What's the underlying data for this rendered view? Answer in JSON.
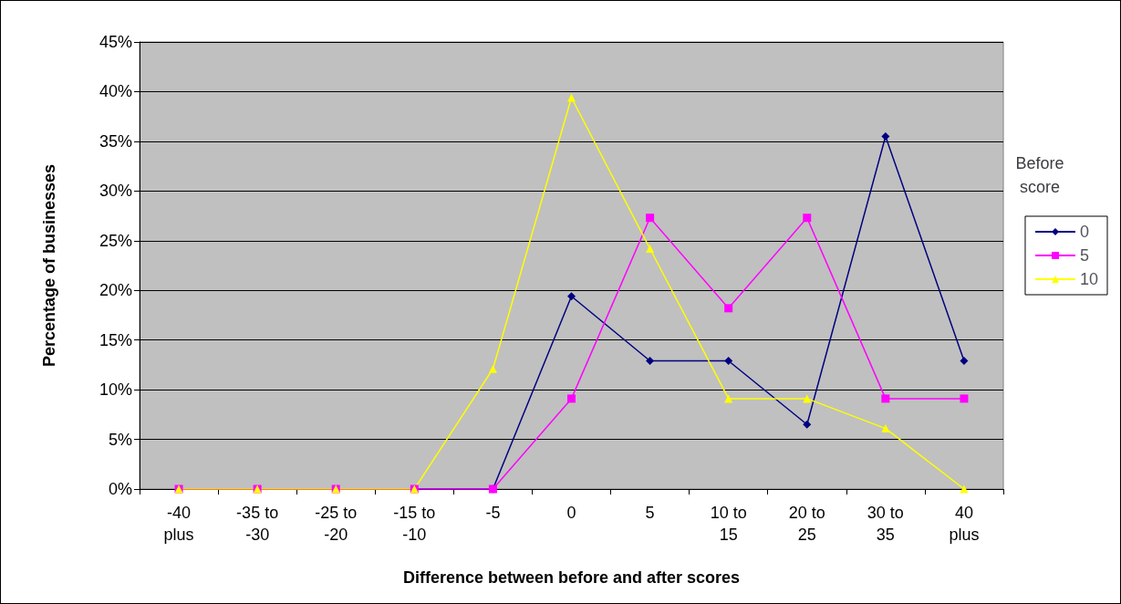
{
  "chart_data": {
    "type": "line",
    "xlabel": "Difference between before and after scores",
    "ylabel": "Percentage of businesses",
    "legend_title": "Before\nscore",
    "legend": "right",
    "grid": "y",
    "categories": [
      "-40\nplus",
      "-35 to\n-30",
      "-25 to\n-20",
      "-15 to\n-10",
      "-5",
      "0",
      "5",
      "10 to\n15",
      "20 to\n25",
      "30 to\n35",
      "40\nplus"
    ],
    "ylim": [
      0,
      45
    ],
    "yticks": [
      {
        "value": 0,
        "label": "0%"
      },
      {
        "value": 5,
        "label": "5%"
      },
      {
        "value": 10,
        "label": "10%"
      },
      {
        "value": 15,
        "label": "15%"
      },
      {
        "value": 20,
        "label": "20%"
      },
      {
        "value": 25,
        "label": "25%"
      },
      {
        "value": 30,
        "label": "30%"
      },
      {
        "value": 35,
        "label": "35%"
      },
      {
        "value": 40,
        "label": "40%"
      },
      {
        "value": 45,
        "label": "45%"
      }
    ],
    "series": [
      {
        "name": "0",
        "color": "#000080",
        "marker": "diamond",
        "values": [
          null,
          null,
          null,
          0,
          0,
          19.4,
          12.9,
          12.9,
          6.5,
          35.5,
          12.9
        ]
      },
      {
        "name": "5",
        "color": "#ff00ff",
        "marker": "square",
        "values": [
          0,
          0,
          0,
          0,
          0,
          9.1,
          27.3,
          18.2,
          27.3,
          9.1,
          9.1
        ]
      },
      {
        "name": "10",
        "color": "#ffff00",
        "marker": "triangle",
        "values": [
          0,
          0,
          0,
          0,
          12.1,
          39.4,
          24.2,
          9.1,
          9.1,
          6.1,
          0
        ]
      }
    ]
  }
}
